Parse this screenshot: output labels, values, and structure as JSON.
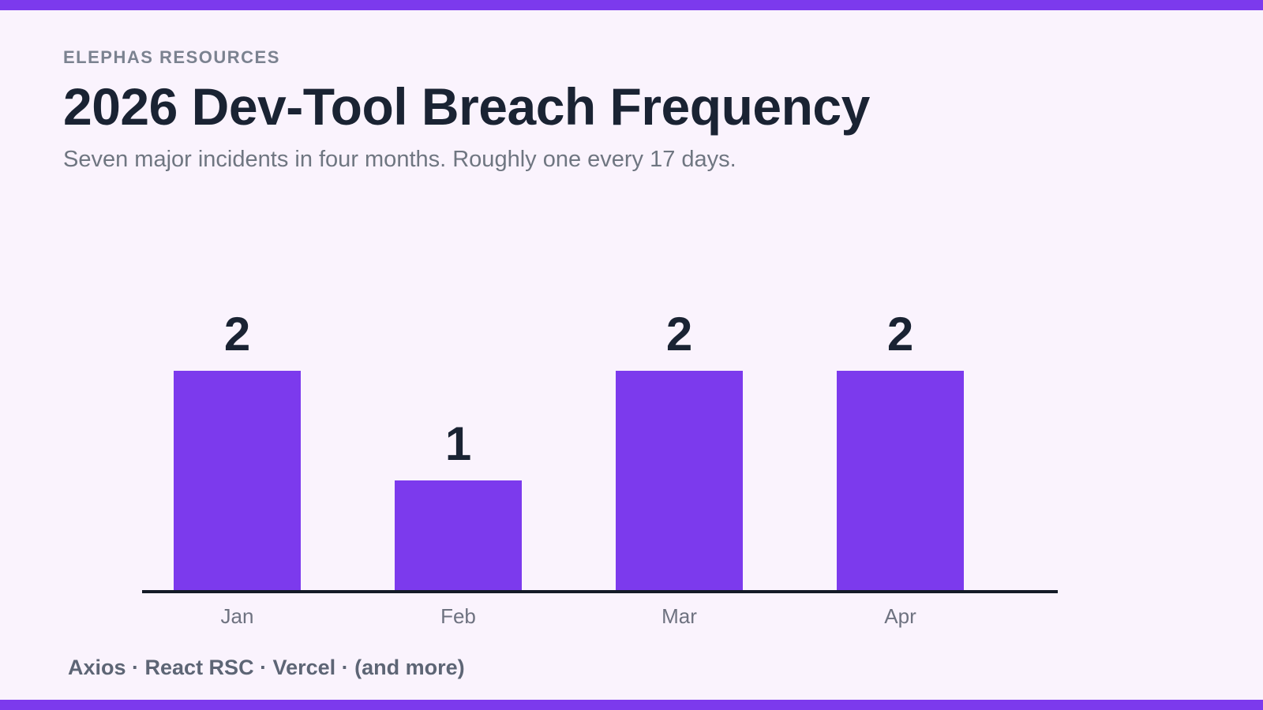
{
  "page": {
    "background_color": "#faf3fd",
    "accent_color": "#7c3aed"
  },
  "header": {
    "eyebrow": "ELEPHAS RESOURCES",
    "title": "2026 Dev-Tool Breach Frequency",
    "subtitle": "Seven major incidents in four months. Roughly one every 17 days."
  },
  "chart_data": {
    "type": "bar",
    "categories": [
      "Jan",
      "Feb",
      "Mar",
      "Apr"
    ],
    "values": [
      2,
      1,
      2,
      2
    ],
    "title": "2026 Dev-Tool Breach Frequency",
    "xlabel": "",
    "ylabel": "",
    "ylim": [
      0,
      2
    ],
    "bar_color": "#7c3aed",
    "value_label_color": "#1a2333",
    "axis_line_color": "#141b27",
    "grid": false,
    "legend": false,
    "value_labels_shown": true
  },
  "footer": {
    "sources": "Axios · React RSC · Vercel · (and more)"
  }
}
